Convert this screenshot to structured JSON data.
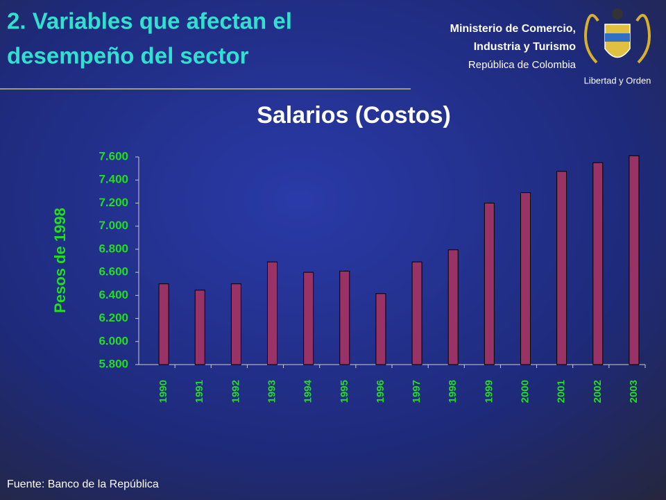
{
  "header": {
    "title_line1": "2. Variables que afectan el",
    "title_line2": "desempeño del sector",
    "org_line1": "Ministerio de Comercio,",
    "org_line2": "Industria y Turismo",
    "org_line3": "República de Colombia",
    "motto": "Libertad y Orden"
  },
  "footer": {
    "source": "Fuente: Banco de la República"
  },
  "chart_data": {
    "type": "bar",
    "title": "Salarios (Costos)",
    "y_label": "Pesos de 1998",
    "categories": [
      "1990",
      "1991",
      "1992",
      "1993",
      "1994",
      "1995",
      "1996",
      "1997",
      "1998",
      "1999",
      "2000",
      "2001",
      "2002",
      "2003"
    ],
    "values": [
      6500,
      6445,
      6500,
      6690,
      6600,
      6610,
      6415,
      6690,
      6795,
      7200,
      7290,
      7475,
      7550,
      7610
    ],
    "color": "#993366",
    "ylim": [
      5800,
      7600
    ],
    "yticks": [
      {
        "value": 5800,
        "label": "5.800"
      },
      {
        "value": 6000,
        "label": "6.000"
      },
      {
        "value": 6200,
        "label": "6.200"
      },
      {
        "value": 6400,
        "label": "6.400"
      },
      {
        "value": 6600,
        "label": "6.600"
      },
      {
        "value": 6800,
        "label": "6.800"
      },
      {
        "value": 7000,
        "label": "7.000"
      },
      {
        "value": 7200,
        "label": "7.200"
      },
      {
        "value": 7400,
        "label": "7.400"
      },
      {
        "value": 7600,
        "label": "7.600"
      }
    ],
    "grid": false
  }
}
